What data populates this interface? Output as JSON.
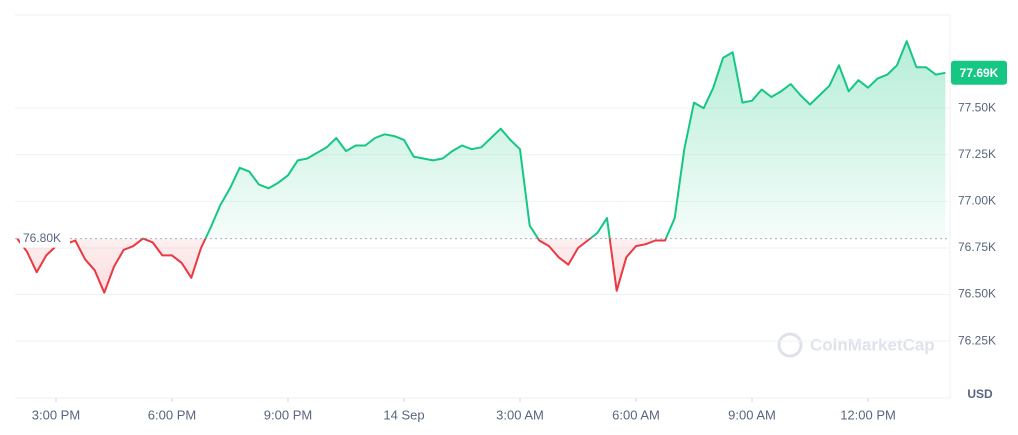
{
  "chart_data": {
    "type": "line",
    "x": [
      14,
      14.25,
      14.5,
      14.75,
      15,
      15.25,
      15.5,
      15.75,
      16,
      16.25,
      16.5,
      16.75,
      17,
      17.25,
      17.5,
      17.75,
      18,
      18.25,
      18.5,
      18.75,
      19,
      19.25,
      19.5,
      19.75,
      20,
      20.25,
      20.5,
      20.75,
      21,
      21.25,
      21.5,
      21.75,
      22,
      22.25,
      22.5,
      22.75,
      23,
      23.25,
      23.5,
      23.75,
      24,
      24.25,
      24.5,
      24.75,
      25,
      25.25,
      25.5,
      25.75,
      26,
      26.25,
      26.5,
      26.75,
      27,
      27.25,
      27.5,
      27.75,
      28,
      28.25,
      28.5,
      28.75,
      29,
      29.25,
      29.5,
      29.75,
      30,
      30.25,
      30.5,
      30.75,
      31,
      31.25,
      31.5,
      31.75,
      32,
      32.25,
      32.5,
      32.75,
      33,
      33.25,
      33.5,
      33.75,
      34,
      34.25,
      34.5,
      34.75,
      35,
      35.25,
      35.5,
      35.75,
      36,
      36.25,
      36.5,
      36.75,
      37,
      37.25,
      37.5,
      37.75,
      38
    ],
    "series": [
      {
        "up_color": "#16c784",
        "down_color": "#ea3943",
        "values": [
          76800,
          76730,
          76620,
          76710,
          76760,
          76770,
          76790,
          76690,
          76630,
          76510,
          76650,
          76740,
          76760,
          76800,
          76780,
          76710,
          76710,
          76670,
          76590,
          76750,
          76860,
          76980,
          77070,
          77180,
          77160,
          77090,
          77070,
          77100,
          77140,
          77220,
          77230,
          77260,
          77290,
          77340,
          77270,
          77300,
          77300,
          77340,
          77360,
          77350,
          77330,
          77240,
          77230,
          77220,
          77230,
          77270,
          77300,
          77280,
          77290,
          77340,
          77390,
          77330,
          77280,
          76870,
          76790,
          76760,
          76700,
          76660,
          76750,
          76790,
          76830,
          76910,
          76520,
          76700,
          76760,
          76770,
          76790,
          76790,
          76910,
          77280,
          77530,
          77500,
          77610,
          77770,
          77800,
          77530,
          77540,
          77600,
          77560,
          77590,
          77630,
          77570,
          77520,
          77570,
          77620,
          77730,
          77590,
          77650,
          77610,
          77660,
          77680,
          77730,
          77860,
          77720,
          77720,
          77680,
          77690
        ]
      }
    ],
    "reference": {
      "value": 76800,
      "label": "76.80K"
    },
    "current": {
      "value": 77690,
      "label": "77.69K"
    },
    "xlim": [
      13.94,
      38.12
    ],
    "xticks": [
      {
        "value": 15,
        "label": "3:00 PM"
      },
      {
        "value": 18,
        "label": "6:00 PM"
      },
      {
        "value": 21,
        "label": "9:00 PM"
      },
      {
        "value": 24,
        "label": "14 Sep"
      },
      {
        "value": 27,
        "label": "3:00 AM"
      },
      {
        "value": 30,
        "label": "6:00 AM"
      },
      {
        "value": 33,
        "label": "9:00 AM"
      },
      {
        "value": 36,
        "label": "12:00 PM"
      }
    ],
    "ylim": [
      75945,
      78000
    ],
    "yticks": [
      {
        "value": 76250,
        "label": "76.25K"
      },
      {
        "value": 76500,
        "label": "76.50K"
      },
      {
        "value": 76750,
        "label": "76.75K"
      },
      {
        "value": 77000,
        "label": "77.00K"
      },
      {
        "value": 77250,
        "label": "77.25K"
      },
      {
        "value": 77500,
        "label": "77.50K"
      }
    ],
    "y_label": "USD",
    "watermark": "CoinMarketCap",
    "grid": true
  }
}
